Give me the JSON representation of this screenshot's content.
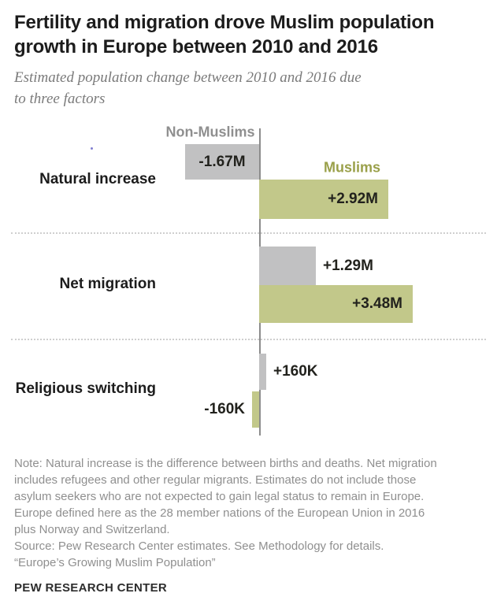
{
  "header": {
    "title_lines": [
      "Fertility and migration drove Muslim population",
      "growth in Europe between 2010 and 2016"
    ],
    "title_full": "Fertility and migration drove Muslim population growth in Europe between 2010 and 2016",
    "subtitle_lines": [
      "Estimated population change between 2010 and 2016 due",
      "to three factors"
    ],
    "subtitle_full": "Estimated population change between 2010 and 2016 due to three factors"
  },
  "chart_data": {
    "type": "bar",
    "orientation": "horizontal_diverging",
    "value_unit": "millions of people",
    "zero_baseline": true,
    "separator_style": "dotted line between categories",
    "categories": [
      "Natural increase",
      "Net migration",
      "Religious switching"
    ],
    "series": [
      {
        "name": "Non-Muslims",
        "name_color": "#8f8f8f",
        "bar_color": "#c1c1c2",
        "values_m": [
          -1.67,
          1.29,
          0.16
        ],
        "value_labels": [
          "-1.67M",
          "+1.29M",
          "+160K"
        ],
        "label_placements": [
          "inside-center",
          "outside-right",
          "outside-right"
        ]
      },
      {
        "name": "Muslims",
        "name_color": "#9aa04a",
        "bar_color": "#c2c88a",
        "values_m": [
          2.92,
          3.48,
          -0.16
        ],
        "value_labels": [
          "+2.92M",
          "+3.48M",
          "-160K"
        ],
        "label_placements": [
          "inside-right",
          "inside-right",
          "outside-left"
        ]
      }
    ]
  },
  "footer": {
    "note_lines": [
      "Note: Natural increase is the difference between births and deaths. Net migration",
      "includes refugees and other regular migrants. Estimates do not include those",
      "asylum seekers who are not expected to gain legal status to remain in Europe.",
      "Europe defined here as the 28 member nations of the European Union in 2016",
      "plus Norway and Switzerland.",
      "Source: Pew Research Center estimates. See Methodology for details.",
      "“Europe’s Growing Muslim Population”"
    ],
    "branding": "PEW RESEARCH CENTER"
  }
}
